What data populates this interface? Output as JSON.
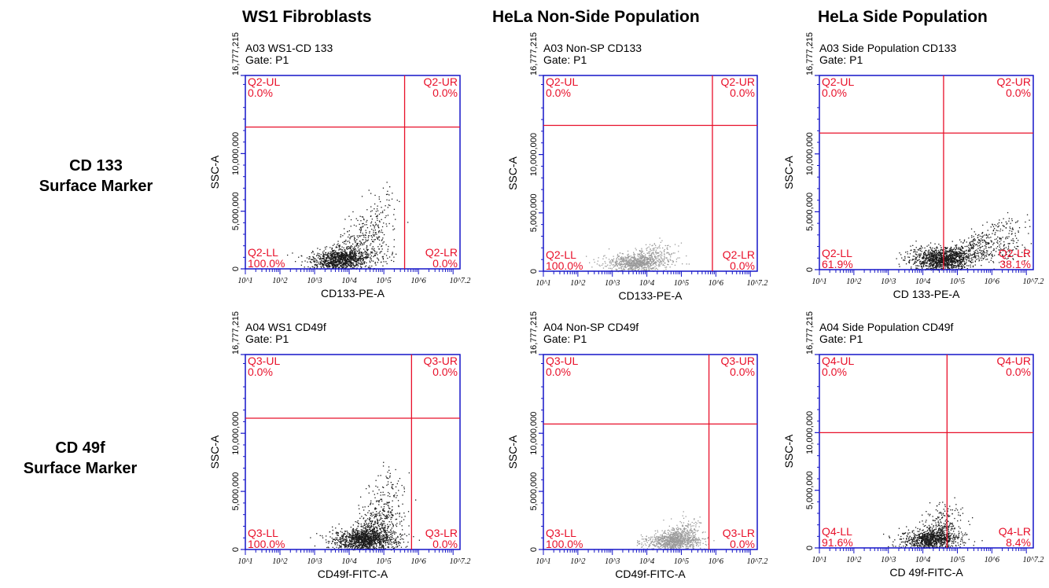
{
  "columns": [
    "WS1 Fibroblasts",
    "HeLa Non-Side Population",
    "HeLa Side Population"
  ],
  "rows": [
    {
      "line1": "CD 133",
      "line2": "Surface Marker"
    },
    {
      "line1": "CD 49f",
      "line2": "Surface Marker"
    }
  ],
  "colors": {
    "axis": "#1515c8",
    "gate": "#e8102a",
    "dots_dark": "#1a1a1a",
    "dots_light": "#9a9a9a"
  },
  "chart_data": [
    {
      "type": "scatter",
      "title": "A03 WS1-CD 133",
      "subtitle": "Gate: P1",
      "xlabel": "CD133-PE-A",
      "ylabel": "SSC-A",
      "xscale": "log",
      "xlim": [
        1,
        7.2
      ],
      "ylim": [
        0,
        16777215
      ],
      "yticks": [
        "0",
        "5,000,000",
        "10,000,000",
        "16,777,215"
      ],
      "xticks": [
        "10^1",
        "10^2",
        "10^3",
        "10^4",
        "10^5",
        "10^6",
        "10^7.2"
      ],
      "gate_x_log": 5.6,
      "gate_y": 12300000,
      "quadrants": {
        "UL": {
          "label": "Q2-UL",
          "pct": "0.0%"
        },
        "UR": {
          "label": "Q2-UR",
          "pct": "0.0%"
        },
        "LL": {
          "label": "Q2-LL",
          "pct": "100.0%"
        },
        "LR": {
          "label": "Q2-LR",
          "pct": "0.0%"
        }
      },
      "population": {
        "cx": 3.7,
        "cy": 800000,
        "tail_x": 5.1,
        "tail_y": 7500000,
        "density": "dark",
        "n": 1400
      }
    },
    {
      "type": "scatter",
      "title": "A03 Non-SP CD133",
      "subtitle": "Gate: P1",
      "xlabel": "CD133-PE-A",
      "ylabel": "SSC-A",
      "xscale": "log",
      "xlim": [
        1,
        7.2
      ],
      "ylim": [
        0,
        16777215
      ],
      "yticks": [
        "0",
        "5,000,000",
        "10,000,000",
        "16,777,215"
      ],
      "xticks": [
        "10^1",
        "10^2",
        "10^3",
        "10^4",
        "10^5",
        "10^6",
        "10^7.2"
      ],
      "gate_x_log": 5.9,
      "gate_y": 12500000,
      "quadrants": {
        "UL": {
          "label": "Q2-UL",
          "pct": "0.0%"
        },
        "UR": {
          "label": "Q2-UR",
          "pct": "0.0%"
        },
        "LL": {
          "label": "Q2-LL",
          "pct": "100.0%"
        },
        "LR": {
          "label": "Q2-LR",
          "pct": "0.0%"
        }
      },
      "population": {
        "cx": 3.6,
        "cy": 700000,
        "tail_x": 4.6,
        "tail_y": 2800000,
        "density": "light",
        "n": 900
      }
    },
    {
      "type": "scatter",
      "title": "A03 Side Population CD133",
      "subtitle": "Gate: P1",
      "xlabel": "CD 133-PE-A",
      "ylabel": "SSC-A",
      "xscale": "log",
      "xlim": [
        1,
        7.2
      ],
      "ylim": [
        0,
        16777215
      ],
      "yticks": [
        "0",
        "5,000,000",
        "10,000,000",
        "16,777,215"
      ],
      "xticks": [
        "10^1",
        "10^2",
        "10^3",
        "10^4",
        "10^5",
        "10^6",
        "10^7.2"
      ],
      "gate_x_log": 4.6,
      "gate_y": 11800000,
      "quadrants": {
        "UL": {
          "label": "Q2-UL",
          "pct": "0.0%"
        },
        "UR": {
          "label": "Q2-UR",
          "pct": "0.0%"
        },
        "LL": {
          "label": "Q2-LL",
          "pct": "61.9%"
        },
        "LR": {
          "label": "Q2-LR",
          "pct": "38.1%"
        }
      },
      "population": {
        "cx": 4.5,
        "cy": 900000,
        "tail_x": 6.8,
        "tail_y": 5000000,
        "density": "dark",
        "n": 1600
      }
    },
    {
      "type": "scatter",
      "title": "A04 WS1 CD49f",
      "subtitle": "Gate: P1",
      "xlabel": "CD49f-FITC-A",
      "ylabel": "SSC-A",
      "xscale": "log",
      "xlim": [
        1,
        7.2
      ],
      "ylim": [
        0,
        16777215
      ],
      "yticks": [
        "0",
        "5,000,000",
        "10,000,000",
        "16,777,215"
      ],
      "xticks": [
        "10^1",
        "10^2",
        "10^3",
        "10^4",
        "10^5",
        "10^6",
        "10^7.2"
      ],
      "gate_x_log": 5.8,
      "gate_y": 11300000,
      "quadrants": {
        "UL": {
          "label": "Q3-UL",
          "pct": "0.0%"
        },
        "UR": {
          "label": "Q3-UR",
          "pct": "0.0%"
        },
        "LL": {
          "label": "Q3-LL",
          "pct": "100.0%"
        },
        "LR": {
          "label": "Q3-LR",
          "pct": "0.0%"
        }
      },
      "population": {
        "cx": 4.4,
        "cy": 800000,
        "tail_x": 5.3,
        "tail_y": 8000000,
        "density": "dark",
        "n": 1600
      }
    },
    {
      "type": "scatter",
      "title": "A04 Non-SP CD49f",
      "subtitle": "Gate: P1",
      "xlabel": "CD49f-FITC-A",
      "ylabel": "SSC-A",
      "xscale": "log",
      "xlim": [
        1,
        7.2
      ],
      "ylim": [
        0,
        16777215
      ],
      "yticks": [
        "0",
        "5,000,000",
        "10,000,000",
        "16,777,215"
      ],
      "xticks": [
        "10^1",
        "10^2",
        "10^3",
        "10^4",
        "10^5",
        "10^6",
        "10^7.2"
      ],
      "gate_x_log": 5.8,
      "gate_y": 10800000,
      "quadrants": {
        "UL": {
          "label": "Q3-UL",
          "pct": "0.0%"
        },
        "UR": {
          "label": "Q3-UR",
          "pct": "0.0%"
        },
        "LL": {
          "label": "Q3-LL",
          "pct": "100.0%"
        },
        "LR": {
          "label": "Q3-LR",
          "pct": "0.0%"
        }
      },
      "population": {
        "cx": 4.7,
        "cy": 700000,
        "tail_x": 5.2,
        "tail_y": 3000000,
        "density": "light",
        "n": 1000
      }
    },
    {
      "type": "scatter",
      "title": "A04 Side Population CD49f",
      "subtitle": "Gate: P1",
      "xlabel": "CD 49f-FITC-A",
      "ylabel": "SSC-A",
      "xscale": "log",
      "xlim": [
        1,
        7.2
      ],
      "ylim": [
        0,
        16777215
      ],
      "yticks": [
        "0",
        "5,000,000",
        "10,000,000",
        "16,777,215"
      ],
      "xticks": [
        "10^1",
        "10^2",
        "10^3",
        "10^4",
        "10^5",
        "10^6",
        "10^7.2"
      ],
      "gate_x_log": 4.7,
      "gate_y": 10000000,
      "quadrants": {
        "UL": {
          "label": "Q4-UL",
          "pct": "0.0%"
        },
        "UR": {
          "label": "Q4-UR",
          "pct": "0.0%"
        },
        "LL": {
          "label": "Q4-LL",
          "pct": "91.6%"
        },
        "LR": {
          "label": "Q4-LR",
          "pct": "8.4%"
        }
      },
      "population": {
        "cx": 4.2,
        "cy": 700000,
        "tail_x": 4.8,
        "tail_y": 4500000,
        "density": "dark",
        "n": 1100
      }
    }
  ]
}
